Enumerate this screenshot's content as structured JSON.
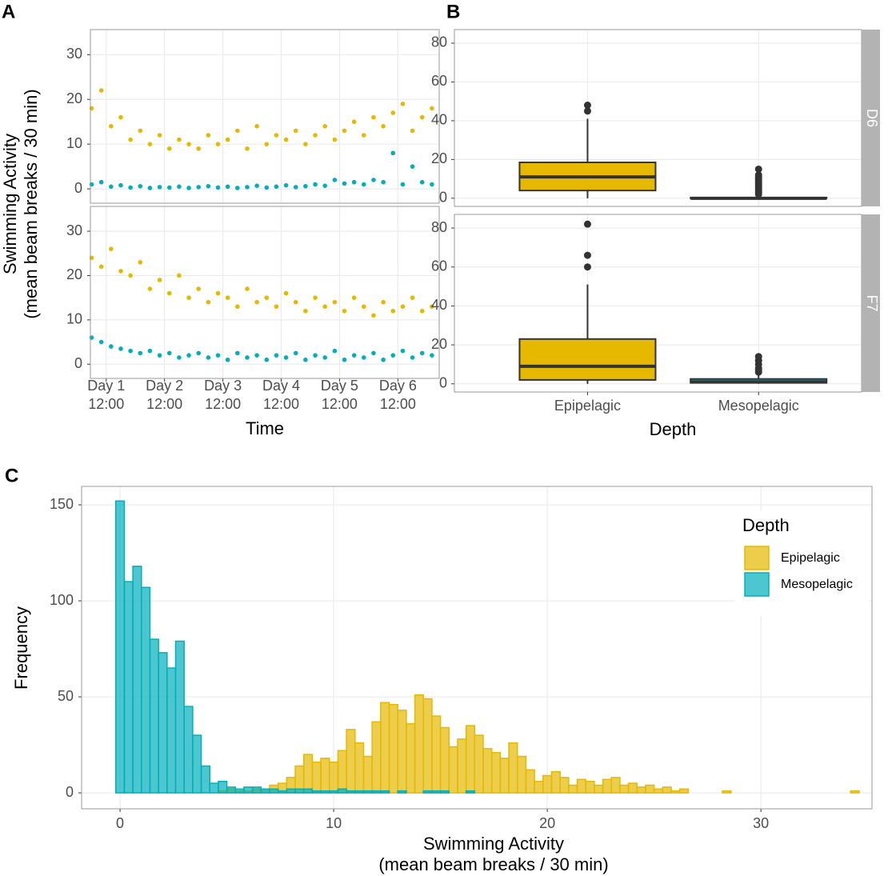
{
  "chart_data": [
    {
      "type": "scatter",
      "tag": "A",
      "ylabel": [
        "Swimming Activity",
        "(mean beam breaks / 30 min)"
      ],
      "xlabel": "Time",
      "xlim": [
        5.5,
        149
      ],
      "xticks": [
        {
          "value": 12,
          "label": [
            "Day 1",
            "12:00"
          ]
        },
        {
          "value": 36,
          "label": [
            "Day 2",
            "12:00"
          ]
        },
        {
          "value": 60,
          "label": [
            "Day 3",
            "12:00"
          ]
        },
        {
          "value": 84,
          "label": [
            "Day 4",
            "12:00"
          ]
        },
        {
          "value": 108,
          "label": [
            "Day 5",
            "12:00"
          ]
        },
        {
          "value": 132,
          "label": [
            "Day 6",
            "12:00"
          ]
        }
      ],
      "ylim": [
        -3.2,
        35.6
      ],
      "yticks": [
        0,
        10,
        20,
        30
      ],
      "grid": true,
      "facets": [
        {
          "x": [
            6,
            10,
            14,
            18,
            22,
            26,
            30,
            34,
            38,
            42,
            46,
            50,
            54,
            58,
            62,
            66,
            70,
            74,
            78,
            82,
            86,
            90,
            94,
            98,
            102,
            106,
            110,
            114,
            118,
            122,
            126,
            130,
            134,
            138,
            142,
            146
          ],
          "series": [
            {
              "color": "#E6B800",
              "values": [
                18,
                22,
                14,
                16,
                11,
                13,
                10,
                12,
                9,
                11,
                10,
                9,
                12,
                10,
                11,
                13,
                9,
                14,
                10,
                12,
                11,
                13,
                10,
                12,
                14,
                11,
                13,
                15,
                12,
                16,
                14,
                17,
                19,
                13,
                16,
                18
              ]
            },
            {
              "color": "#00AFBB",
              "values": [
                1,
                1.5,
                0.5,
                0.8,
                0.3,
                0.6,
                0.2,
                0.4,
                0.3,
                0.5,
                0.2,
                0.4,
                0.6,
                0.3,
                0.5,
                0.2,
                0.4,
                0.7,
                0.3,
                0.5,
                0.8,
                0.4,
                0.6,
                1,
                0.7,
                2,
                1.2,
                1.5,
                1,
                2,
                1.5,
                8,
                1,
                5,
                1.5,
                1
              ]
            }
          ]
        },
        {
          "x": [
            6,
            10,
            14,
            18,
            22,
            26,
            30,
            34,
            38,
            42,
            46,
            50,
            54,
            58,
            62,
            66,
            70,
            74,
            78,
            82,
            86,
            90,
            94,
            98,
            102,
            106,
            110,
            114,
            118,
            122,
            126,
            130,
            134,
            138,
            142,
            146
          ],
          "series": [
            {
              "color": "#E6B800",
              "values": [
                24,
                22,
                26,
                21,
                20,
                23,
                17,
                19,
                16,
                20,
                15,
                17,
                14,
                16,
                15,
                13,
                17,
                14,
                15,
                13,
                16,
                14,
                12,
                15,
                13,
                14,
                12,
                15,
                13,
                11,
                14,
                12,
                13,
                15,
                12,
                13
              ]
            },
            {
              "color": "#00AFBB",
              "values": [
                6,
                5,
                4,
                3.5,
                3,
                2.5,
                3,
                2,
                2.5,
                1.5,
                2,
                2.5,
                1.5,
                2,
                1,
                2.5,
                1.5,
                2,
                1,
                2,
                1.5,
                2.5,
                1,
                2,
                1.5,
                3,
                1,
                2,
                1.5,
                2.5,
                1,
                2,
                3,
                1.5,
                2.5,
                2
              ]
            }
          ]
        }
      ]
    },
    {
      "type": "box",
      "tag": "B",
      "xlabel": "Depth",
      "categories": [
        "Epipelagic",
        "Mesopelagic"
      ],
      "colors": [
        "#E6B800",
        "#00AFBB"
      ],
      "ylim": [
        -4.2,
        87
      ],
      "yticks": [
        0,
        20,
        40,
        60,
        80
      ],
      "grid": true,
      "facets": [
        {
          "name": "D6",
          "boxes": [
            {
              "whislo": 0,
              "q1": 4,
              "med": 11,
              "q3": 18.5,
              "whishi": 41,
              "fliers": [
                45,
                48
              ]
            },
            {
              "whislo": 0,
              "q1": 0,
              "med": 0,
              "q3": 0.3,
              "whishi": 0.8,
              "fliers": [
                2,
                3,
                4,
                5,
                6,
                7,
                8,
                9,
                10,
                11,
                12,
                15
              ]
            }
          ]
        },
        {
          "name": "F7",
          "boxes": [
            {
              "whislo": 0,
              "q1": 2,
              "med": 9,
              "q3": 23,
              "whishi": 51,
              "fliers": [
                60,
                66,
                82
              ]
            },
            {
              "whislo": 0,
              "q1": 0.5,
              "med": 1,
              "q3": 2.5,
              "whishi": 5,
              "fliers": [
                6,
                7,
                8,
                10,
                12,
                14
              ]
            }
          ]
        }
      ]
    },
    {
      "type": "histogram",
      "tag": "C",
      "xlabel": [
        "Swimming Activity",
        "(mean beam breaks / 30 min)"
      ],
      "ylabel": "Frequency",
      "xlim": [
        -1.8,
        35.2
      ],
      "xticks": [
        0,
        10,
        20,
        30
      ],
      "ylim": [
        -8.3,
        159.6
      ],
      "yticks": [
        0,
        50,
        100,
        150
      ],
      "grid": true,
      "legend_title": "Depth",
      "legend": "top-right",
      "bins": [
        -0.2,
        0.2,
        0.6,
        1,
        1.4,
        1.8,
        2.2,
        2.6,
        3,
        3.4,
        3.8,
        4.2,
        4.6,
        5,
        5.4,
        5.8,
        6.2,
        6.6,
        7,
        7.4,
        7.8,
        8.2,
        8.6,
        9,
        9.4,
        9.8,
        10.2,
        10.6,
        11,
        11.4,
        11.8,
        12.2,
        12.6,
        13,
        13.4,
        13.8,
        14.2,
        14.6,
        15,
        15.4,
        15.8,
        16.2,
        16.6,
        17,
        17.4,
        17.8,
        18.2,
        18.6,
        19,
        19.4,
        19.8,
        20.2,
        20.6,
        21,
        21.4,
        21.8,
        22.2,
        22.6,
        23,
        23.4,
        23.8,
        24.2,
        24.6,
        25,
        25.4,
        25.8,
        26.2,
        26.6,
        27,
        27.4,
        27.8,
        28.2,
        28.6,
        29,
        29.4,
        29.8,
        30.2,
        30.6,
        31,
        31.4,
        31.8,
        32.2,
        32.6,
        33,
        33.4,
        33.8,
        34.2,
        34.6,
        35
      ],
      "series": [
        {
          "name": "Epipelagic",
          "color": "#E6B800",
          "values": [
            0,
            0,
            0,
            0,
            0,
            0,
            0,
            0,
            0,
            0,
            0,
            0,
            1,
            2,
            1,
            1,
            2,
            2,
            4,
            5,
            8,
            14,
            20,
            16,
            18,
            16,
            22,
            33,
            26,
            19,
            37,
            47,
            46,
            43,
            36,
            51,
            49,
            40,
            34,
            24,
            28,
            35,
            30,
            23,
            21,
            18,
            26,
            19,
            12,
            6,
            9,
            11,
            8,
            4,
            7,
            6,
            4,
            7,
            8,
            4,
            5,
            3,
            4,
            2,
            3,
            1,
            2,
            0,
            0,
            0,
            0,
            1,
            0,
            0,
            0,
            0,
            0,
            0,
            0,
            0,
            0,
            0,
            0,
            0,
            0,
            0,
            1,
            0
          ]
        },
        {
          "name": "Mesopelagic",
          "color": "#00AFBB",
          "values": [
            152,
            110,
            118,
            107,
            80,
            73,
            65,
            79,
            45,
            30,
            14,
            5,
            6,
            3,
            2,
            3,
            3,
            2,
            2,
            1,
            2,
            2,
            2,
            1,
            1,
            1,
            2,
            1,
            1,
            1,
            1,
            1,
            0,
            1,
            0,
            0,
            1,
            1,
            1,
            0,
            0,
            1,
            0,
            0,
            0,
            0,
            0,
            0,
            0,
            0,
            0,
            0,
            0,
            0,
            0,
            0,
            0,
            0,
            0,
            0,
            0,
            0,
            0,
            0,
            0,
            0,
            0,
            0,
            0,
            0,
            0,
            0,
            0,
            0,
            0,
            0,
            0,
            0,
            0,
            0,
            0,
            0,
            0,
            0,
            0,
            0,
            0,
            0
          ]
        }
      ]
    }
  ]
}
